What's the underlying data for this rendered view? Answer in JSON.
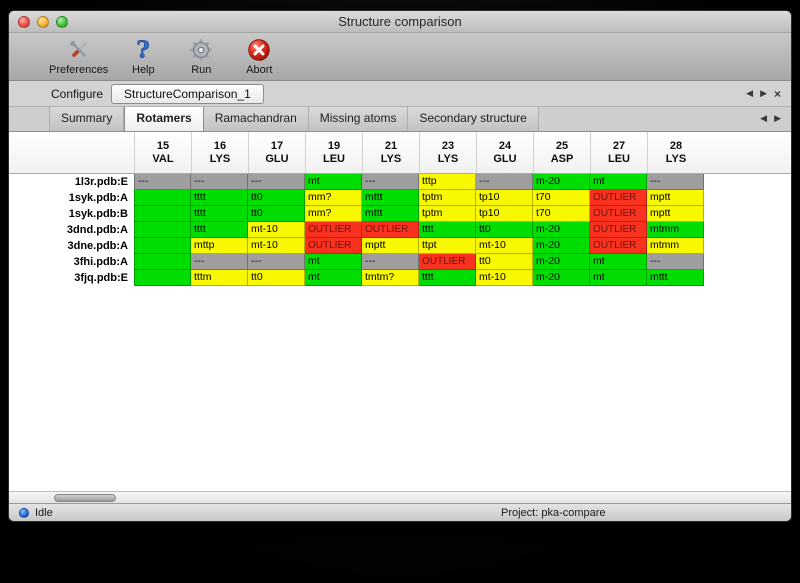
{
  "window": {
    "title": "Structure comparison"
  },
  "toolbar": {
    "preferences": "Preferences",
    "help": "Help",
    "run": "Run",
    "abort": "Abort"
  },
  "configure": {
    "label": "Configure",
    "tab_label": "StructureComparison_1",
    "prev_glyph": "◀",
    "next_glyph": "▶",
    "close_glyph": "×"
  },
  "tabs": {
    "items": [
      "Summary",
      "Rotamers",
      "Ramachandran",
      "Missing atoms",
      "Secondary structure"
    ],
    "active_index": 1,
    "prev_glyph": "◀",
    "next_glyph": "▶"
  },
  "legend_colors": {
    "favored": "#00dd00",
    "allowed": "#f8f800",
    "outlier": "#f93220",
    "missing": "#9e9e9e"
  },
  "table": {
    "columns": [
      {
        "num": "15",
        "res": "VAL"
      },
      {
        "num": "16",
        "res": "LYS"
      },
      {
        "num": "17",
        "res": "GLU"
      },
      {
        "num": "19",
        "res": "LEU"
      },
      {
        "num": "21",
        "res": "LYS"
      },
      {
        "num": "23",
        "res": "LYS"
      },
      {
        "num": "24",
        "res": "GLU"
      },
      {
        "num": "25",
        "res": "ASP"
      },
      {
        "num": "27",
        "res": "LEU"
      },
      {
        "num": "28",
        "res": "LYS"
      }
    ],
    "rows": [
      {
        "label": "1l3r.pdb:E",
        "cells": [
          {
            "text": "---",
            "status": "missing"
          },
          {
            "text": "---",
            "status": "missing"
          },
          {
            "text": "---",
            "status": "missing"
          },
          {
            "text": "mt",
            "status": "favored"
          },
          {
            "text": "---",
            "status": "missing"
          },
          {
            "text": "tttp",
            "status": "allowed"
          },
          {
            "text": "---",
            "status": "missing"
          },
          {
            "text": "m-20",
            "status": "favored"
          },
          {
            "text": "mt",
            "status": "favored"
          },
          {
            "text": "---",
            "status": "missing"
          }
        ]
      },
      {
        "label": "1syk.pdb:A",
        "cells": [
          {
            "text": "",
            "status": "favored"
          },
          {
            "text": "tttt",
            "status": "favored"
          },
          {
            "text": "tt0",
            "status": "favored"
          },
          {
            "text": "mm?",
            "status": "allowed"
          },
          {
            "text": "mttt",
            "status": "favored"
          },
          {
            "text": "tptm",
            "status": "allowed"
          },
          {
            "text": "tp10",
            "status": "allowed"
          },
          {
            "text": "t70",
            "status": "allowed"
          },
          {
            "text": "OUTLIER",
            "status": "outlier"
          },
          {
            "text": "mptt",
            "status": "allowed"
          }
        ]
      },
      {
        "label": "1syk.pdb:B",
        "cells": [
          {
            "text": "",
            "status": "favored"
          },
          {
            "text": "tttt",
            "status": "favored"
          },
          {
            "text": "tt0",
            "status": "favored"
          },
          {
            "text": "mm?",
            "status": "allowed"
          },
          {
            "text": "mttt",
            "status": "favored"
          },
          {
            "text": "tptm",
            "status": "allowed"
          },
          {
            "text": "tp10",
            "status": "allowed"
          },
          {
            "text": "t70",
            "status": "allowed"
          },
          {
            "text": "OUTLIER",
            "status": "outlier"
          },
          {
            "text": "mptt",
            "status": "allowed"
          }
        ]
      },
      {
        "label": "3dnd.pdb:A",
        "cells": [
          {
            "text": "",
            "status": "favored"
          },
          {
            "text": "tttt",
            "status": "favored"
          },
          {
            "text": "mt-10",
            "status": "allowed"
          },
          {
            "text": "OUTLIER",
            "status": "outlier"
          },
          {
            "text": "OUTLIER",
            "status": "outlier"
          },
          {
            "text": "tttt",
            "status": "favored"
          },
          {
            "text": "tt0",
            "status": "favored"
          },
          {
            "text": "m-20",
            "status": "favored"
          },
          {
            "text": "OUTLIER",
            "status": "outlier"
          },
          {
            "text": "mtmm",
            "status": "favored"
          }
        ]
      },
      {
        "label": "3dne.pdb:A",
        "cells": [
          {
            "text": "",
            "status": "favored"
          },
          {
            "text": "mttp",
            "status": "allowed"
          },
          {
            "text": "mt-10",
            "status": "allowed"
          },
          {
            "text": "OUTLIER",
            "status": "outlier"
          },
          {
            "text": "mptt",
            "status": "allowed"
          },
          {
            "text": "ttpt",
            "status": "allowed"
          },
          {
            "text": "mt-10",
            "status": "allowed"
          },
          {
            "text": "m-20",
            "status": "favored"
          },
          {
            "text": "OUTLIER",
            "status": "outlier"
          },
          {
            "text": "mtmm",
            "status": "allowed"
          }
        ]
      },
      {
        "label": "3fhi.pdb:A",
        "cells": [
          {
            "text": "",
            "status": "favored"
          },
          {
            "text": "---",
            "status": "missing"
          },
          {
            "text": "---",
            "status": "missing"
          },
          {
            "text": "mt",
            "status": "favored"
          },
          {
            "text": "---",
            "status": "missing"
          },
          {
            "text": "OUTLIER",
            "status": "outlier"
          },
          {
            "text": "tt0",
            "status": "allowed"
          },
          {
            "text": "m-20",
            "status": "favored"
          },
          {
            "text": "mt",
            "status": "favored"
          },
          {
            "text": "---",
            "status": "missing"
          }
        ]
      },
      {
        "label": "3fjq.pdb:E",
        "cells": [
          {
            "text": "",
            "status": "favored"
          },
          {
            "text": "tttm",
            "status": "allowed"
          },
          {
            "text": "tt0",
            "status": "allowed"
          },
          {
            "text": "mt",
            "status": "favored"
          },
          {
            "text": "tmtm?",
            "status": "allowed"
          },
          {
            "text": "tttt",
            "status": "favored"
          },
          {
            "text": "mt-10",
            "status": "allowed"
          },
          {
            "text": "m-20",
            "status": "favored"
          },
          {
            "text": "mt",
            "status": "favored"
          },
          {
            "text": "mttt",
            "status": "favored"
          }
        ]
      }
    ]
  },
  "status_bar": {
    "status": "Idle",
    "project": "Project: pka-compare"
  }
}
